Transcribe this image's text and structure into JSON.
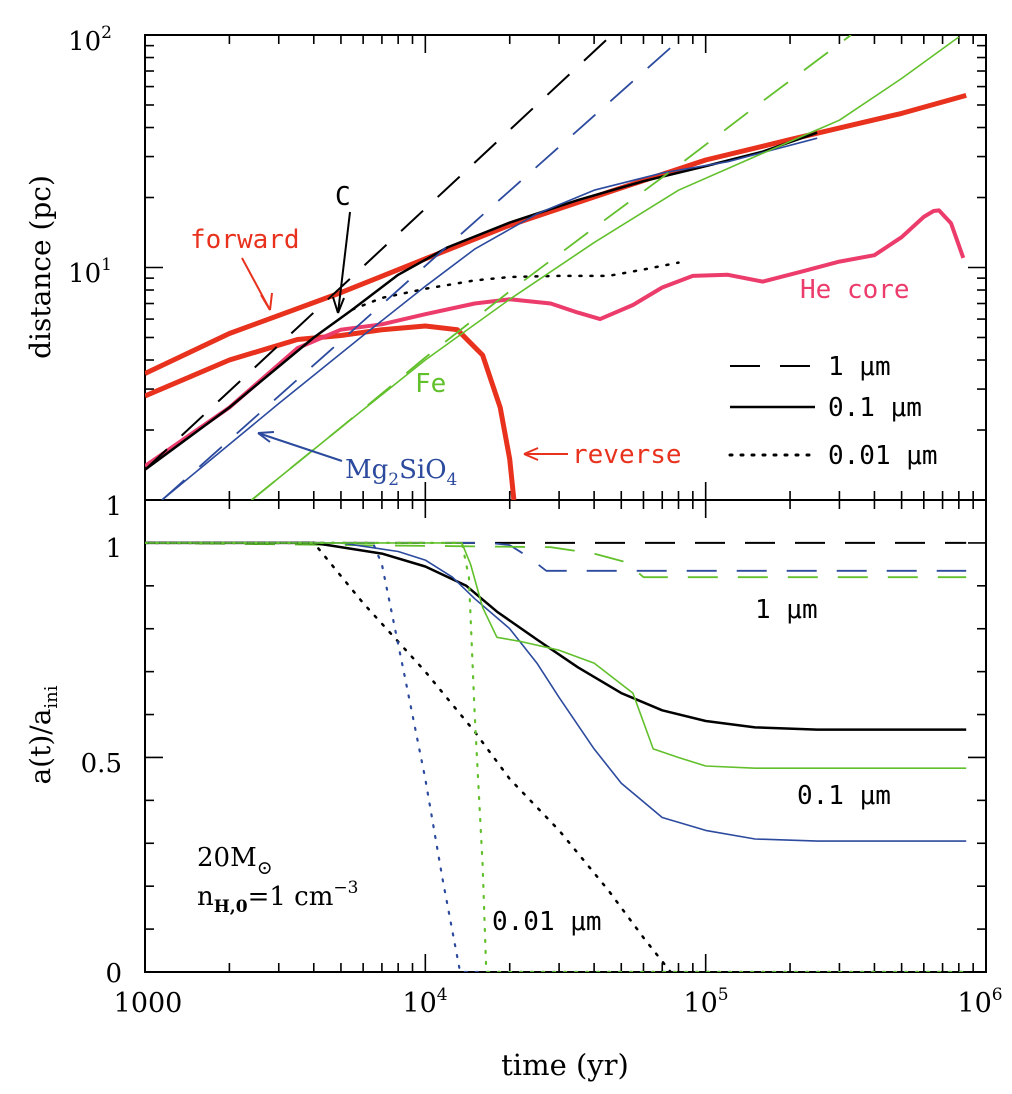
{
  "chart_data": [
    {
      "type": "line",
      "panel": "top",
      "ylabel": "distance (pc)",
      "xscale": "log",
      "yscale": "log",
      "xlim": [
        1000,
        1000000
      ],
      "ylim": [
        1,
        100
      ],
      "yticklabels": [
        {
          "value": 1,
          "label": "1"
        },
        {
          "value": 10,
          "base": "10",
          "exp": "1"
        },
        {
          "value": 100,
          "base": "10",
          "exp": "2"
        }
      ],
      "legend": {
        "placement": "lower-right",
        "entries": [
          {
            "style": "dashed",
            "text": "1 μm"
          },
          {
            "style": "solid",
            "text": "0.1 μm"
          },
          {
            "style": "dotted",
            "text": "0.01 μm"
          }
        ]
      },
      "annotations": {
        "forward": "forward",
        "reverse": "reverse",
        "c": "C",
        "fe": "Fe",
        "mg_base": "Mg",
        "mg_sub1": "2",
        "mg_mid": "SiO",
        "mg_sub2": "4",
        "he": "He core"
      },
      "series": [
        {
          "key": "forward_shock",
          "color": "#e8321e",
          "width": 5,
          "style": "solid",
          "x": [
            1000,
            2000,
            5000,
            10000,
            20000,
            50000,
            100000,
            200000,
            500000,
            850000
          ],
          "y": [
            3.5,
            5.2,
            7.8,
            10.9,
            15.2,
            22.0,
            29.0,
            35.5,
            46.0,
            55.0
          ]
        },
        {
          "key": "reverse_shock",
          "color": "#e8321e",
          "width": 5,
          "style": "solid",
          "x": [
            1000,
            2000,
            3500,
            5000,
            7000,
            10000,
            13000,
            16000,
            18500,
            20000,
            20700
          ],
          "y": [
            2.8,
            4.0,
            4.9,
            5.1,
            5.4,
            5.6,
            5.4,
            4.2,
            2.5,
            1.5,
            1.0
          ]
        },
        {
          "key": "he_core",
          "color": "#ec3c6c",
          "width": 4,
          "style": "solid",
          "x": [
            1000,
            2000,
            3500,
            5000,
            7000,
            10000,
            15000,
            20000,
            28000,
            35000,
            42000,
            55000,
            70000,
            90000,
            120000,
            160000,
            220000,
            300000,
            400000,
            500000,
            600000,
            650000,
            680000,
            750000,
            830000
          ],
          "y": [
            1.4,
            2.5,
            4.5,
            5.4,
            5.7,
            6.3,
            7.0,
            7.3,
            7.0,
            6.4,
            6.0,
            6.9,
            8.2,
            9.2,
            9.3,
            8.7,
            9.6,
            10.6,
            11.3,
            13.5,
            16.5,
            17.5,
            17.6,
            15.5,
            11.0
          ]
        },
        {
          "key": "c_1um",
          "color": "#000000",
          "width": 2,
          "style": "dashed",
          "x": [
            1000,
            100000
          ],
          "y": [
            1.35,
            238
          ]
        },
        {
          "key": "c_0.1um",
          "color": "#000000",
          "width": 2.5,
          "style": "solid",
          "x": [
            1000,
            2000,
            4000,
            5500,
            8000,
            12000,
            20000,
            35000,
            60000,
            100000,
            160000,
            250000
          ],
          "y": [
            1.35,
            2.5,
            5.0,
            6.6,
            9.3,
            12.2,
            15.6,
            19.5,
            23.5,
            27.3,
            31.5,
            38.0
          ]
        },
        {
          "key": "c_0.01um",
          "color": "#000000",
          "width": 2.5,
          "style": "dotted",
          "x": [
            5500,
            7000,
            10000,
            15000,
            20000,
            30000,
            45000,
            60000,
            80000
          ],
          "y": [
            6.6,
            7.4,
            8.1,
            8.8,
            9.1,
            9.2,
            9.2,
            9.8,
            10.5
          ]
        },
        {
          "key": "mg2sio4_1um",
          "color": "#2c4a9e",
          "width": 1.8,
          "style": "dashed",
          "x": [
            1150,
            210000
          ],
          "y": [
            1.0,
            266
          ]
        },
        {
          "key": "mg2sio4_0.1um",
          "color": "#2c4a9e",
          "width": 1.6,
          "style": "solid",
          "x": [
            1150,
            3000,
            6000,
            10000,
            15000,
            25000,
            40000,
            70000,
            120000,
            250000
          ],
          "y": [
            1.0,
            2.6,
            5.1,
            8.3,
            12.0,
            17.0,
            21.5,
            25.5,
            28.5,
            36.0
          ]
        },
        {
          "key": "fe_1um",
          "color": "#62c02c",
          "width": 1.8,
          "style": "dashed",
          "x": [
            2400,
            5000,
            10000,
            20000,
            40000,
            80000,
            160000,
            330000
          ],
          "y": [
            1.0,
            2.05,
            4.1,
            7.9,
            14.8,
            27.5,
            52.0,
            100
          ]
        },
        {
          "key": "fe_0.1um",
          "color": "#62c02c",
          "width": 1.6,
          "style": "solid",
          "x": [
            2400,
            5000,
            10000,
            20000,
            40000,
            80000,
            150000,
            300000,
            500000,
            800000
          ],
          "y": [
            1.0,
            2.05,
            4.0,
            7.3,
            12.8,
            21.5,
            30.0,
            43.0,
            65.0,
            98.0
          ]
        }
      ]
    },
    {
      "type": "line",
      "panel": "bottom",
      "xlabel": "time (yr)",
      "ylabel_base": "a(t)/a",
      "ylabel_sub": "ini",
      "xscale": "log",
      "xlim": [
        1000,
        1000000
      ],
      "ylim": [
        0,
        1.1
      ],
      "xticklabels": [
        {
          "value": 1000,
          "label": "1000"
        },
        {
          "value": 10000,
          "base": "10",
          "exp": "4"
        },
        {
          "value": 100000,
          "base": "10",
          "exp": "5"
        },
        {
          "value": 1000000,
          "base": "10",
          "exp": "6"
        }
      ],
      "yticklabels": [
        {
          "value": 0,
          "label": "0"
        },
        {
          "value": 0.5,
          "label": "0.5"
        },
        {
          "value": 1,
          "label": "1"
        }
      ],
      "annotations": {
        "a1um": "1 μm",
        "a01um": "0.1 μm",
        "a001um": "0.01 μm",
        "mass": "20M",
        "sun": "⊙",
        "density_base": "n",
        "density_sub": "H,0",
        "density_eq": "=1 cm",
        "density_exp": "−3"
      },
      "series": [
        {
          "key": "c_1um",
          "color": "#000000",
          "width": 2,
          "style": "dashed",
          "x": [
            1000,
            850000
          ],
          "y": [
            1.0,
            1.0
          ]
        },
        {
          "key": "mg2sio4_1um",
          "color": "#2c4a9e",
          "width": 1.8,
          "style": "dashed",
          "x": [
            1000,
            17000,
            20000,
            23000,
            27000,
            40000,
            100000,
            850000
          ],
          "y": [
            1.0,
            1.0,
            0.995,
            0.97,
            0.935,
            0.935,
            0.935,
            0.935
          ]
        },
        {
          "key": "fe_1um",
          "color": "#62c02c",
          "width": 1.8,
          "style": "dashed",
          "x": [
            1000,
            28000,
            40000,
            52000,
            60000,
            100000,
            850000
          ],
          "y": [
            1.0,
            0.99,
            0.975,
            0.955,
            0.92,
            0.92,
            0.92
          ]
        },
        {
          "key": "c_0.1um",
          "color": "#000000",
          "width": 2.5,
          "style": "solid",
          "x": [
            1000,
            4000,
            7000,
            10000,
            14000,
            18000,
            25000,
            35000,
            50000,
            70000,
            100000,
            150000,
            250000,
            850000
          ],
          "y": [
            1.0,
            1.0,
            0.975,
            0.945,
            0.9,
            0.84,
            0.775,
            0.71,
            0.65,
            0.61,
            0.585,
            0.57,
            0.565,
            0.565
          ]
        },
        {
          "key": "mg2sio4_0.1um",
          "color": "#2c4a9e",
          "width": 1.6,
          "style": "solid",
          "x": [
            1000,
            5000,
            8000,
            10000,
            12500,
            15000,
            20000,
            25000,
            30000,
            40000,
            50000,
            70000,
            100000,
            150000,
            250000,
            850000
          ],
          "y": [
            1.0,
            1.0,
            0.98,
            0.96,
            0.92,
            0.87,
            0.8,
            0.72,
            0.64,
            0.52,
            0.44,
            0.36,
            0.33,
            0.31,
            0.305,
            0.305
          ]
        },
        {
          "key": "fe_0.1um",
          "color": "#62c02c",
          "width": 1.6,
          "style": "solid",
          "x": [
            1000,
            13500,
            14500,
            16000,
            18000,
            22000,
            30000,
            40000,
            55000,
            65000,
            80000,
            100000,
            150000,
            850000
          ],
          "y": [
            1.0,
            1.0,
            0.95,
            0.85,
            0.78,
            0.77,
            0.75,
            0.72,
            0.65,
            0.52,
            0.5,
            0.48,
            0.475,
            0.475
          ]
        },
        {
          "key": "c_0.01um",
          "color": "#000000",
          "width": 2.5,
          "style": "dotted",
          "x": [
            1000,
            4000,
            6000,
            10000,
            15000,
            20000,
            30000,
            45000,
            60000,
            75000
          ],
          "y": [
            1.0,
            1.0,
            0.86,
            0.7,
            0.56,
            0.45,
            0.33,
            0.19,
            0.08,
            0.0
          ]
        },
        {
          "key": "mg2sio4_0.01um",
          "color": "#2c4a9e",
          "width": 2.2,
          "style": "dotted",
          "x": [
            1000,
            6500,
            7000,
            8500,
            10000,
            11500,
            13300,
            850000
          ],
          "y": [
            1.0,
            1.0,
            0.95,
            0.68,
            0.45,
            0.22,
            0.0,
            0.0
          ]
        },
        {
          "key": "fe_0.01um",
          "color": "#62c02c",
          "width": 2.2,
          "style": "dotted",
          "x": [
            1000,
            13500,
            14300,
            15000,
            16000,
            16500,
            850000
          ],
          "y": [
            1.0,
            1.0,
            0.92,
            0.6,
            0.25,
            0.0,
            0.0
          ]
        }
      ]
    }
  ]
}
